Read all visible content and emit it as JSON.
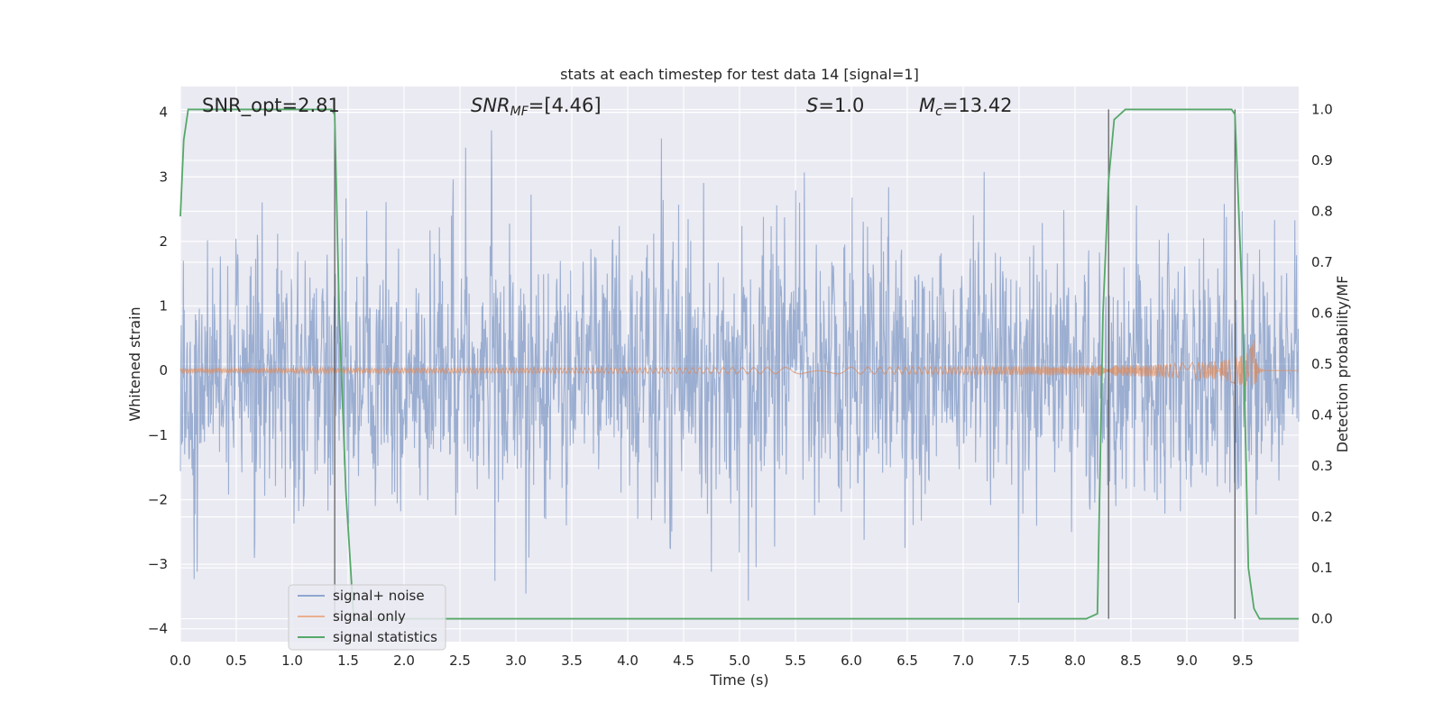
{
  "chart_data": {
    "type": "line",
    "title": "stats at each timestep for test data 14 [signal=1]",
    "xlabel": "Time (s)",
    "ylabel_left": "Whitened strain",
    "ylabel_right": "Detection probability/MF",
    "xlim": [
      0.0,
      10.0
    ],
    "ylim_left": [
      -4.2,
      4.4
    ],
    "ylim_right": [
      -0.045,
      1.045
    ],
    "x_ticks": [
      "0.0",
      "0.5",
      "1.0",
      "1.5",
      "2.0",
      "2.5",
      "3.0",
      "3.5",
      "4.0",
      "4.5",
      "5.0",
      "5.5",
      "6.0",
      "6.5",
      "7.0",
      "7.5",
      "8.0",
      "8.5",
      "9.0",
      "9.5"
    ],
    "y_ticks_left": [
      "−4",
      "−3",
      "−2",
      "−1",
      "0",
      "1",
      "2",
      "3",
      "4"
    ],
    "y_ticks_right": [
      "0.0",
      "0.1",
      "0.2",
      "0.3",
      "0.4",
      "0.5",
      "0.6",
      "0.7",
      "0.8",
      "0.9",
      "1.0"
    ],
    "grid": true,
    "legend_position": "lower-left",
    "annotations": {
      "snr_opt": "SNR_opt=2.81",
      "snr_mf_sym": "SNR",
      "snr_mf_sub": "MF",
      "snr_mf_val": "=[4.46]",
      "s_sym": "S",
      "s_val": "=1.0",
      "mc_sym": "M",
      "mc_sub": "c",
      "mc_val": "=13.42"
    },
    "series": [
      {
        "name": "signal+ noise",
        "color": "#4c72b0",
        "axis": "left",
        "description_kind": "noise",
        "amplitude_envelope_1sigma": 1.0,
        "range": [
          -3.7,
          4.1
        ]
      },
      {
        "name": "signal only",
        "color": "#dd8452",
        "axis": "left",
        "kind": "chirp",
        "merger_time": 9.6,
        "peak_amplitude": 0.55
      },
      {
        "name": "signal statistics",
        "color": "#55a868",
        "axis": "right",
        "x": [
          0.0,
          0.03,
          0.07,
          0.3,
          1.35,
          1.38,
          1.42,
          1.48,
          1.55,
          2.0,
          5.0,
          8.1,
          8.2,
          8.25,
          8.3,
          8.35,
          8.45,
          9.0,
          9.3,
          9.4,
          9.43,
          9.5,
          9.55,
          9.6,
          9.65,
          9.75,
          10.0
        ],
        "values": [
          0.79,
          0.94,
          1.0,
          1.0,
          1.0,
          0.99,
          0.6,
          0.25,
          0.0,
          0.0,
          0.0,
          0.0,
          0.01,
          0.6,
          0.86,
          0.98,
          1.0,
          1.0,
          1.0,
          1.0,
          0.99,
          0.6,
          0.1,
          0.02,
          0.0,
          0.0,
          0.0
        ]
      }
    ],
    "vertical_lines": [
      1.38,
      8.3,
      9.43
    ],
    "vertical_line_color": "#333333"
  }
}
